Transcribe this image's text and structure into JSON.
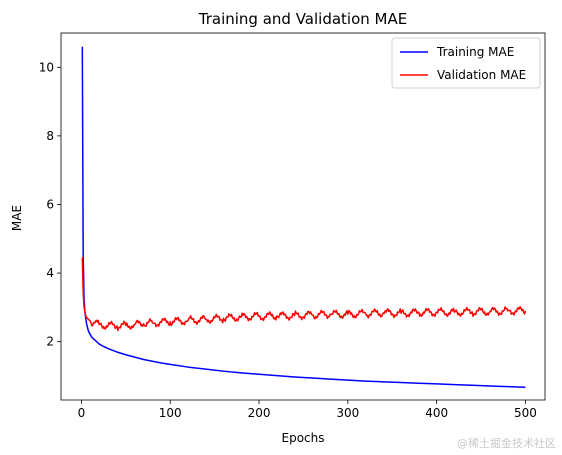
{
  "chart_data": {
    "type": "line",
    "title": "Training and Validation MAE",
    "xlabel": "Epochs",
    "ylabel": "MAE",
    "xlim": [
      -23,
      522
    ],
    "ylim": [
      0.3,
      11.0
    ],
    "xticks": [
      0,
      100,
      200,
      300,
      400,
      500
    ],
    "yticks": [
      2,
      4,
      6,
      8,
      10
    ],
    "grid": false,
    "legend": "top-right",
    "series": [
      {
        "name": "Training MAE",
        "color": "#0000ff",
        "x": [
          1,
          2,
          3,
          4,
          5,
          6,
          8,
          10,
          12,
          15,
          18,
          20,
          25,
          30,
          35,
          40,
          45,
          50,
          60,
          70,
          80,
          90,
          100,
          120,
          140,
          160,
          180,
          200,
          220,
          240,
          260,
          280,
          300,
          320,
          340,
          360,
          380,
          400,
          420,
          440,
          460,
          480,
          500
        ],
        "y": [
          10.6,
          4.5,
          3.2,
          2.85,
          2.65,
          2.5,
          2.3,
          2.2,
          2.12,
          2.05,
          1.98,
          1.93,
          1.86,
          1.8,
          1.75,
          1.7,
          1.66,
          1.62,
          1.55,
          1.48,
          1.43,
          1.38,
          1.34,
          1.26,
          1.2,
          1.14,
          1.09,
          1.05,
          1.01,
          0.97,
          0.94,
          0.91,
          0.88,
          0.85,
          0.83,
          0.81,
          0.79,
          0.77,
          0.75,
          0.73,
          0.71,
          0.69,
          0.67
        ]
      },
      {
        "name": "Validation MAE",
        "color": "#ff0000",
        "x": [
          1,
          2,
          3,
          4,
          5,
          6,
          8,
          10,
          15,
          20,
          30,
          40,
          50,
          60,
          70,
          80,
          100,
          120,
          140,
          160,
          180,
          200,
          220,
          240,
          260,
          280,
          300,
          320,
          340,
          360,
          380,
          400,
          420,
          440,
          460,
          480,
          500
        ],
        "y": [
          4.45,
          3.4,
          3.0,
          2.85,
          2.75,
          2.7,
          2.65,
          2.6,
          2.55,
          2.5,
          2.47,
          2.46,
          2.47,
          2.5,
          2.52,
          2.55,
          2.58,
          2.62,
          2.65,
          2.68,
          2.72,
          2.74,
          2.75,
          2.76,
          2.78,
          2.8,
          2.8,
          2.82,
          2.84,
          2.83,
          2.85,
          2.86,
          2.86,
          2.87,
          2.88,
          2.9,
          2.9
        ]
      }
    ]
  },
  "watermark": "@稀土掘金技术社区"
}
